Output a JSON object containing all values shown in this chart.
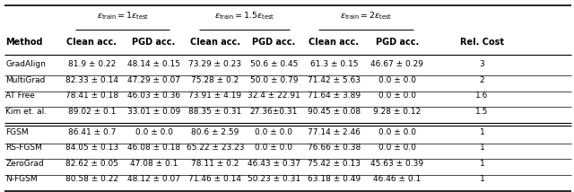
{
  "col_group_labels": [
    "ε_train = 1ε_test",
    "ε_train = 1.5ε_test",
    "ε_train = 2ε_test"
  ],
  "subcols": [
    "Clean acc.",
    "PGD acc.",
    "Clean acc.",
    "PGD acc.",
    "Clean acc.",
    "PGD acc.",
    "Rel. Cost"
  ],
  "methods": [
    "GradAlign",
    "MultiGrad",
    "AT Free",
    "Kim et. al.",
    "FGSM",
    "RS-FGSM",
    "ZeroGrad",
    "N-FGSM"
  ],
  "double_rule_after": 3,
  "data": [
    [
      "81.9 ± 0.22",
      "48.14 ± 0.15",
      "73.29 ± 0.23",
      "50.6 ± 0.45",
      "61.3 ± 0.15",
      "46.67 ± 0.29",
      "3"
    ],
    [
      "82.33 ± 0.14",
      "47.29 ± 0.07",
      "75.28 ± 0.2",
      "50.0 ± 0.79",
      "71.42 ± 5.63",
      "0.0 ± 0.0",
      "2"
    ],
    [
      "78.41 ± 0.18",
      "46.03 ± 0.36",
      "73.91 ± 4.19",
      "32.4 ± 22.91",
      "71.64 ± 3.89",
      "0.0 ± 0.0",
      "1.6"
    ],
    [
      "89.02 ± 0.1",
      "33.01 ± 0.09",
      "88.35 ± 0.31",
      "27.36±0.31",
      "90.45 ± 0.08",
      "9.28 ± 0.12",
      "1.5"
    ],
    [
      "86.41 ± 0.7",
      "0.0 ± 0.0",
      "80.6 ± 2.59",
      "0.0 ± 0.0",
      "77.14 ± 2.46",
      "0.0 ± 0.0",
      "1"
    ],
    [
      "84.05 ± 0.13",
      "46.08 ± 0.18",
      "65.22 ± 23.23",
      "0.0 ± 0.0",
      "76.66 ± 0.38",
      "0.0 ± 0.0",
      "1"
    ],
    [
      "82.62 ± 0.05",
      "47.08 ± 0.1",
      "78.11 ± 0.2",
      "46.43 ± 0.37",
      "75.42 ± 0.13",
      "45.63 ± 0.39",
      "1"
    ],
    [
      "80.58 ± 0.22",
      "48.12 ± 0.07",
      "71.46 ± 0.14",
      "50.23 ± 0.31",
      "63.18 ± 0.49",
      "46.46 ± 0.1",
      "1"
    ]
  ],
  "bg_color": "#ffffff"
}
